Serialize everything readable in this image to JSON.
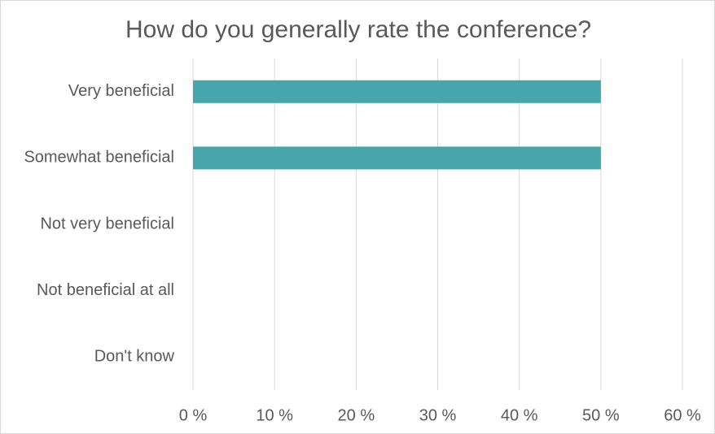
{
  "chart_data": {
    "type": "bar",
    "orientation": "horizontal",
    "title": "How do you generally rate the conference?",
    "categories": [
      "Very beneficial",
      "Somewhat beneficial",
      "Not very beneficial",
      "Not beneficial at all",
      "Don't know"
    ],
    "values": [
      50,
      50,
      0,
      0,
      0
    ],
    "color": "#46a6ab",
    "xlim": [
      0,
      60
    ],
    "xticks": [
      {
        "value": 0,
        "label": "0 %"
      },
      {
        "value": 10,
        "label": "10 %"
      },
      {
        "value": 20,
        "label": "20 %"
      },
      {
        "value": 30,
        "label": "30 %"
      },
      {
        "value": 40,
        "label": "40 %"
      },
      {
        "value": 50,
        "label": "50 %"
      },
      {
        "value": 60,
        "label": "60 %"
      }
    ],
    "grid": true
  }
}
